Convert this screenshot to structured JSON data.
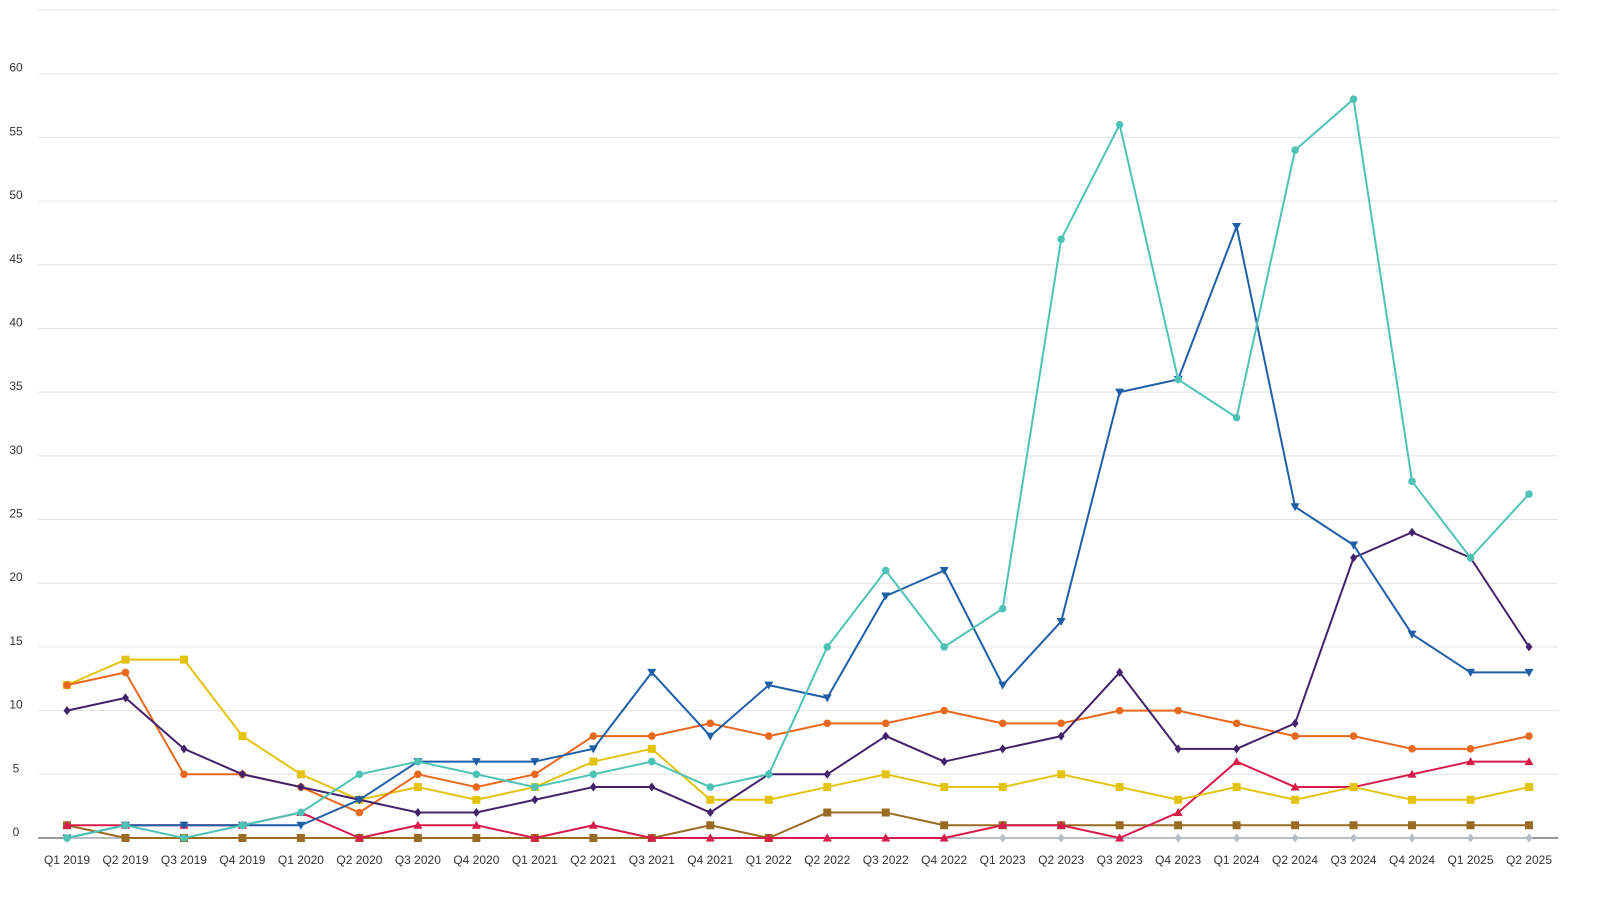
{
  "chart_data": {
    "type": "line",
    "title": "",
    "xlabel": "",
    "ylabel": "",
    "ylim": [
      0,
      65
    ],
    "yticks": [
      0,
      5,
      10,
      15,
      20,
      25,
      30,
      35,
      40,
      45,
      50,
      55,
      60
    ],
    "grid": true,
    "legend": "none",
    "categories": [
      "Q1 2019",
      "Q2 2019",
      "Q3 2019",
      "Q4 2019",
      "Q1 2020",
      "Q2 2020",
      "Q3 2020",
      "Q4 2020",
      "Q1 2021",
      "Q2 2021",
      "Q3 2021",
      "Q4 2021",
      "Q1 2022",
      "Q2 2022",
      "Q3 2022",
      "Q4 2022",
      "Q1 2023",
      "Q2 2023",
      "Q3 2023",
      "Q4 2023",
      "Q1 2024",
      "Q2 2024",
      "Q3 2024",
      "Q4 2024",
      "Q1 2025",
      "Q2 2025"
    ],
    "series": [
      {
        "color": "#4ec3b5",
        "marker": "circle",
        "values": [
          0,
          1,
          0,
          1,
          2,
          5,
          6,
          5,
          4,
          5,
          6,
          4,
          5,
          15,
          21,
          15,
          18,
          47,
          56,
          36,
          33,
          54,
          58,
          28,
          22,
          27
        ]
      },
      {
        "color": "#1f5fa8",
        "marker": "triangle-down",
        "values": [
          0,
          1,
          1,
          1,
          1,
          3,
          6,
          6,
          6,
          7,
          13,
          8,
          12,
          11,
          19,
          21,
          12,
          17,
          35,
          36,
          48,
          26,
          23,
          16,
          13,
          13
        ]
      },
      {
        "color": "#42236b",
        "marker": "diamond",
        "values": [
          10,
          11,
          7,
          5,
          4,
          3,
          2,
          2,
          3,
          4,
          4,
          2,
          5,
          5,
          8,
          6,
          7,
          8,
          13,
          7,
          7,
          9,
          22,
          24,
          22,
          15
        ]
      },
      {
        "color": "#e8691e",
        "marker": "circle",
        "values": [
          12,
          13,
          5,
          5,
          4,
          2,
          5,
          4,
          5,
          8,
          8,
          9,
          8,
          9,
          9,
          10,
          9,
          9,
          10,
          10,
          9,
          8,
          8,
          7,
          7,
          8
        ]
      },
      {
        "color": "#e3c30f",
        "marker": "square",
        "values": [
          12,
          14,
          14,
          8,
          5,
          3,
          4,
          3,
          4,
          6,
          7,
          3,
          3,
          4,
          5,
          4,
          4,
          5,
          4,
          3,
          4,
          3,
          4,
          3,
          3,
          4
        ]
      },
      {
        "color": "#d81b4b",
        "marker": "triangle-up",
        "values": [
          1,
          1,
          1,
          1,
          2,
          0,
          1,
          1,
          0,
          1,
          0,
          0,
          0,
          0,
          0,
          0,
          1,
          1,
          0,
          2,
          6,
          4,
          4,
          5,
          6,
          6
        ]
      },
      {
        "color": "#9a6b22",
        "marker": "square",
        "values": [
          1,
          0,
          0,
          0,
          0,
          0,
          0,
          0,
          0,
          0,
          0,
          1,
          0,
          2,
          2,
          1,
          1,
          1,
          1,
          1,
          1,
          1,
          1,
          1,
          1,
          1
        ]
      },
      {
        "color": "#b8bcc4",
        "marker": "diamond",
        "values": [
          0,
          0,
          0,
          0,
          0,
          0,
          0,
          0,
          0,
          0,
          0,
          0,
          0,
          0,
          0,
          0,
          0,
          0,
          0,
          0,
          0,
          0,
          0,
          0,
          0,
          0
        ]
      }
    ]
  }
}
